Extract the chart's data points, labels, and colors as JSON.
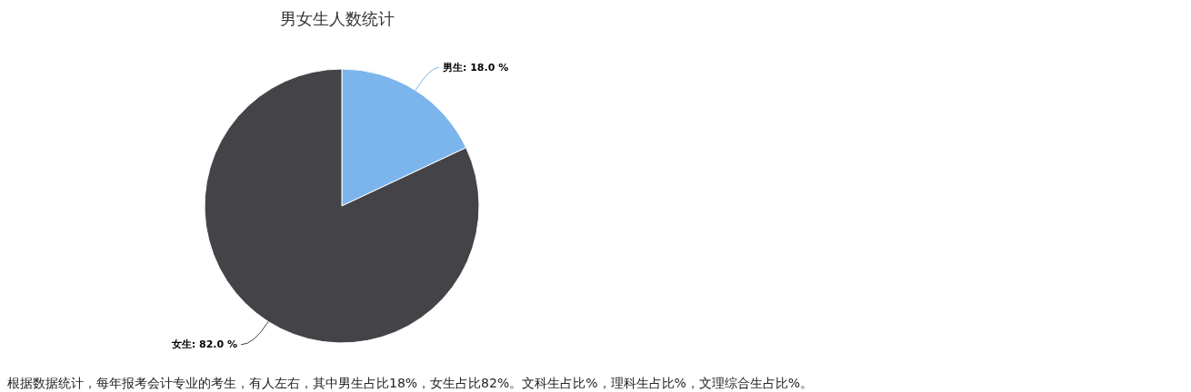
{
  "chart_data": {
    "type": "pie",
    "title": "男女生人数统计",
    "categories": [
      "男生",
      "女生"
    ],
    "values": [
      18,
      82
    ],
    "colors": [
      "#7cb5ec",
      "#434348"
    ],
    "value_labels": [
      "18.0 %",
      "82.0 %"
    ],
    "annotations": [
      "根据数据统计，每年报考会计专业的考生，有人左右，其中男生占比18%，女生占比82%。文科生占比%，理科生占比%，文理综合生占比%。"
    ]
  }
}
